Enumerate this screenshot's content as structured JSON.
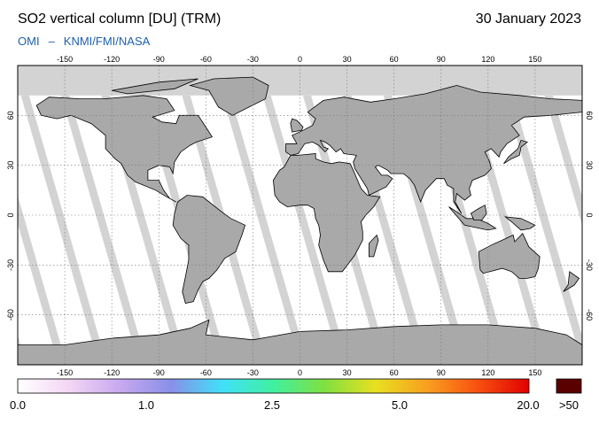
{
  "header": {
    "title": "SO2 vertical column [DU] (TRM)",
    "date": "30 January 2023",
    "instrument": "OMI",
    "separator": "–",
    "agencies": "KNMI/FMI/NASA"
  },
  "map": {
    "projection": "equirectangular",
    "lon_range": [
      -180,
      180
    ],
    "lat_range": [
      -90,
      90
    ],
    "lon_ticks": [
      "-150",
      "-120",
      "-90",
      "-60",
      "-30",
      "0",
      "30",
      "60",
      "90",
      "120",
      "150"
    ],
    "lat_ticks": [
      "60",
      "30",
      "0",
      "-30",
      "-60"
    ],
    "colors": {
      "no_data": "#d3d3d3",
      "land": "#a9a9a9",
      "data_background": "#ffffff"
    }
  },
  "colorbar": {
    "labels": [
      "0.0",
      "1.0",
      "2.5",
      "5.0",
      "20.0"
    ],
    "overflow_label": ">50",
    "colors": [
      "#ffffff",
      "#f4d6f4",
      "#c8a8f0",
      "#8890e8",
      "#40e0f8",
      "#40f0a0",
      "#80e040",
      "#e8e020",
      "#f8a020",
      "#f85010",
      "#e00000"
    ],
    "overflow_color": "#5a0000"
  }
}
